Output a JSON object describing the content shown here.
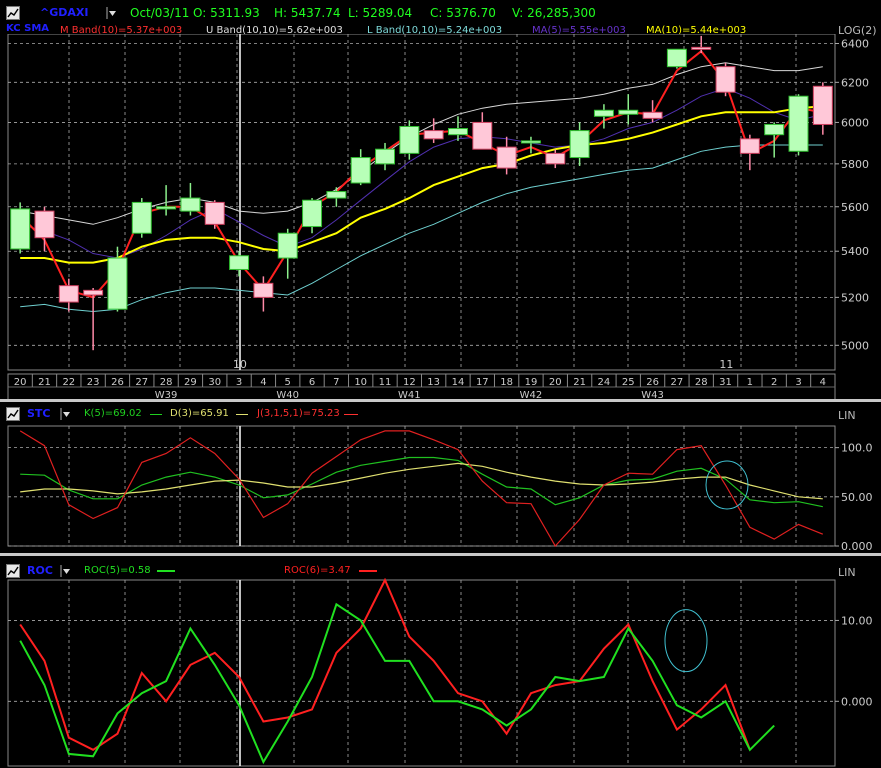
{
  "main": {
    "symbol": "^GDAXI",
    "quote": {
      "date": "Oct/03/11",
      "open": "O: 5311.93",
      "high": "H: 5437.74",
      "low": "L: 5289.04",
      "close": "C: 5376.70",
      "volume": "V: 26,285,300"
    },
    "indicator": "KC SMA",
    "legend": [
      {
        "label": "M Band(10)=5.37e+003",
        "color": "#ff3030"
      },
      {
        "label": "U Band(10,10)=5.62e+003",
        "color": "#e0e0e0"
      },
      {
        "label": "L Band(10,10)=5.24e+003",
        "color": "#7fdcdc"
      },
      {
        "label": "MA(5)=5.55e+003",
        "color": "#6633cc"
      },
      {
        "label": "MA(10)=5.44e+003",
        "color": "#ffff00"
      }
    ],
    "scale": "LOG(2)"
  },
  "stc": {
    "title": "STC",
    "scale": "LIN",
    "legend": [
      {
        "label": "K(5)=69.02",
        "color": "#20d020"
      },
      {
        "label": "D(3)=65.91",
        "color": "#e0e070"
      },
      {
        "label": "J(3,1,5,1)=75.23",
        "color": "#ff3030"
      }
    ]
  },
  "roc": {
    "title": "ROC",
    "scale": "LIN",
    "legend": [
      {
        "label": "ROC(5)=0.58",
        "color": "#20e020"
      },
      {
        "label": "ROC(6)=3.47",
        "color": "#ff2020"
      }
    ]
  },
  "chart_data": [
    {
      "type": "candlestick",
      "title": "^GDAXI",
      "ylim": [
        4900,
        6450
      ],
      "yticks": [
        "6400",
        "6200",
        "6000",
        "5800",
        "5600",
        "5400",
        "5200",
        "5000"
      ],
      "ytick_values": [
        6400,
        6200,
        6000,
        5800,
        5600,
        5400,
        5200,
        5000
      ],
      "grid": true,
      "x_day_labels": [
        "20",
        "21",
        "22",
        "23",
        "26",
        "27",
        "28",
        "29",
        "30",
        "3",
        "4",
        "5",
        "6",
        "7",
        "10",
        "11",
        "12",
        "13",
        "14",
        "17",
        "18",
        "19",
        "20",
        "21",
        "24",
        "25",
        "26",
        "27",
        "28",
        "31",
        "1",
        "2",
        "3",
        "4"
      ],
      "x_week_labels": [
        {
          "label": "W39",
          "at": 6
        },
        {
          "label": "W40",
          "at": 11
        },
        {
          "label": "W41",
          "at": 16
        },
        {
          "label": "W42",
          "at": 21
        },
        {
          "label": "W43",
          "at": 26
        }
      ],
      "x_month_labels": [
        {
          "label": "10",
          "at": 9
        },
        {
          "label": "11",
          "at": 29
        }
      ],
      "ohlc": [
        [
          5410,
          5620,
          5390,
          5590
        ],
        [
          5580,
          5600,
          5400,
          5460
        ],
        [
          5250,
          5280,
          5140,
          5180
        ],
        [
          5230,
          5240,
          4980,
          5210
        ],
        [
          5150,
          5420,
          5140,
          5370
        ],
        [
          5480,
          5640,
          5460,
          5620
        ],
        [
          5590,
          5700,
          5560,
          5600
        ],
        [
          5580,
          5710,
          5560,
          5640
        ],
        [
          5620,
          5630,
          5500,
          5520
        ],
        [
          5320,
          5400,
          5290,
          5380
        ],
        [
          5260,
          5290,
          5140,
          5200
        ],
        [
          5370,
          5500,
          5280,
          5480
        ],
        [
          5510,
          5640,
          5480,
          5630
        ],
        [
          5640,
          5690,
          5600,
          5670
        ],
        [
          5710,
          5870,
          5700,
          5830
        ],
        [
          5800,
          5900,
          5770,
          5870
        ],
        [
          5850,
          6010,
          5820,
          5980
        ],
        [
          5960,
          6020,
          5900,
          5920
        ],
        [
          5940,
          6030,
          5910,
          5970
        ],
        [
          6000,
          6050,
          5870,
          5870
        ],
        [
          5880,
          5930,
          5750,
          5780
        ],
        [
          5900,
          5930,
          5850,
          5910
        ],
        [
          5850,
          5870,
          5780,
          5800
        ],
        [
          5830,
          6000,
          5790,
          5960
        ],
        [
          6030,
          6090,
          5970,
          6060
        ],
        [
          6040,
          6140,
          5990,
          6060
        ],
        [
          6050,
          6110,
          6000,
          6020
        ],
        [
          6280,
          6360,
          6270,
          6370
        ],
        [
          6380,
          6440,
          6350,
          6370
        ],
        [
          6280,
          6300,
          6130,
          6150
        ],
        [
          5920,
          5940,
          5770,
          5850
        ],
        [
          5940,
          6000,
          5830,
          5990
        ],
        [
          5860,
          6140,
          5840,
          6130
        ],
        [
          6180,
          6200,
          5940,
          5990
        ]
      ],
      "series": [
        {
          "name": "M Band(10)",
          "values": [
            5560,
            5450,
            5230,
            5200,
            5320,
            5570,
            5600,
            5600,
            5530,
            5350,
            5230,
            5400,
            5600,
            5670,
            5780,
            5860,
            5940,
            5950,
            5960,
            5900,
            5840,
            5880,
            5830,
            5900,
            6010,
            6050,
            6040,
            6260,
            6360,
            6200,
            5850,
            5910,
            6070,
            6050
          ]
        },
        {
          "name": "U Band(10,10)",
          "values": [
            5580,
            5560,
            5540,
            5520,
            5550,
            5590,
            5620,
            5640,
            5620,
            5580,
            5570,
            5580,
            5620,
            5680,
            5760,
            5850,
            5930,
            5990,
            6040,
            6070,
            6090,
            6100,
            6110,
            6120,
            6140,
            6170,
            6190,
            6240,
            6280,
            6300,
            6280,
            6260,
            6260,
            6280
          ]
        },
        {
          "name": "L Band(10,10)",
          "values": [
            5160,
            5170,
            5150,
            5140,
            5150,
            5190,
            5220,
            5240,
            5240,
            5230,
            5220,
            5210,
            5260,
            5320,
            5380,
            5430,
            5480,
            5520,
            5570,
            5620,
            5660,
            5690,
            5710,
            5730,
            5750,
            5770,
            5780,
            5820,
            5860,
            5880,
            5890,
            5890,
            5890,
            5890
          ]
        },
        {
          "name": "MA(5)",
          "values": [
            5520,
            5490,
            5450,
            5390,
            5370,
            5410,
            5470,
            5540,
            5590,
            5530,
            5470,
            5420,
            5460,
            5540,
            5630,
            5720,
            5810,
            5880,
            5920,
            5930,
            5920,
            5900,
            5880,
            5890,
            5920,
            5970,
            6000,
            6060,
            6130,
            6170,
            6120,
            6050,
            6010,
            6040
          ]
        },
        {
          "name": "MA(10)",
          "values": [
            5370,
            5370,
            5350,
            5350,
            5370,
            5420,
            5450,
            5460,
            5460,
            5440,
            5410,
            5400,
            5440,
            5480,
            5550,
            5590,
            5640,
            5700,
            5740,
            5780,
            5800,
            5840,
            5870,
            5890,
            5900,
            5920,
            5950,
            5990,
            6030,
            6050,
            6050,
            6050,
            6070,
            6080
          ]
        }
      ]
    },
    {
      "type": "line",
      "title": "STC",
      "ylim": [
        0,
        122
      ],
      "yticks": [
        "100.0",
        "50.00",
        "0.000"
      ],
      "ytick_values": [
        100,
        50,
        0
      ],
      "annotation": "circle near last crossover",
      "series": [
        {
          "name": "K(5)",
          "values": [
            73,
            72,
            57,
            48,
            48,
            62,
            70,
            75,
            70,
            62,
            49,
            52,
            63,
            75,
            82,
            86,
            90,
            90,
            87,
            73,
            60,
            58,
            42,
            49,
            62,
            67,
            68,
            76,
            79,
            68,
            47,
            44,
            45,
            40
          ]
        },
        {
          "name": "D(3)",
          "values": [
            55,
            58,
            58,
            56,
            53,
            55,
            58,
            62,
            66,
            67,
            64,
            60,
            60,
            64,
            69,
            74,
            78,
            81,
            84,
            81,
            75,
            70,
            66,
            63,
            62,
            63,
            65,
            68,
            70,
            70,
            62,
            56,
            50,
            48
          ]
        },
        {
          "name": "J(3,1,5,1)",
          "values": [
            117,
            102,
            42,
            28,
            39,
            85,
            94,
            110,
            94,
            68,
            29,
            43,
            74,
            91,
            108,
            117,
            117,
            108,
            98,
            66,
            44,
            43,
            0,
            27,
            62,
            74,
            73,
            98,
            102,
            62,
            19,
            7,
            22,
            12
          ]
        }
      ]
    },
    {
      "type": "line",
      "title": "ROC",
      "ylim": [
        -8,
        15
      ],
      "yticks": [
        "10.00",
        "0.000"
      ],
      "ytick_values": [
        10,
        0
      ],
      "annotation": "circle near late peak",
      "series": [
        {
          "name": "ROC(5)",
          "values": [
            7.5,
            2,
            -6.5,
            -6.8,
            -1.5,
            1,
            2.5,
            9,
            4.5,
            -0.5,
            -7.5,
            -2.5,
            3,
            12,
            10,
            5,
            5,
            0,
            0,
            -1,
            -3,
            -1,
            3,
            2.5,
            3,
            9,
            5,
            -0.5,
            -2,
            0,
            -6,
            -3,
            null,
            null
          ]
        },
        {
          "name": "ROC(6)",
          "values": [
            9.5,
            5,
            -4.5,
            -6,
            -4,
            3.5,
            0,
            4.5,
            6,
            3,
            -2.5,
            -2,
            -1,
            6,
            9,
            15,
            8,
            5,
            1,
            0,
            -4,
            1,
            2,
            2.5,
            6.5,
            9.5,
            2.5,
            -3.5,
            -1,
            2,
            -6,
            null,
            null,
            null
          ]
        }
      ]
    }
  ]
}
